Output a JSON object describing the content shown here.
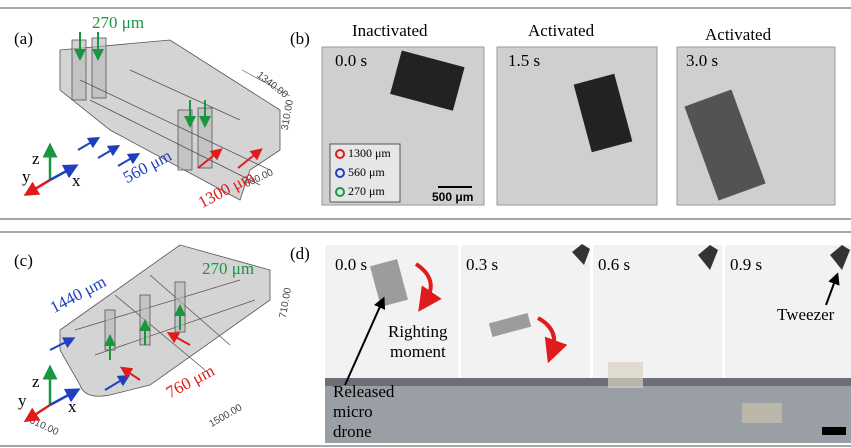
{
  "panel_a": {
    "label": "(a)",
    "dim_270": "270 μm",
    "dim_1340": "1340.00",
    "dim_310": "310.00",
    "dim_600": "600.00",
    "dim_560": "560 μm",
    "dim_1300": "1300 μm",
    "axis_z": "z",
    "axis_y": "y",
    "axis_x": "x"
  },
  "panel_b": {
    "label": "(b)",
    "frames": [
      {
        "state": "Inactivated",
        "time": "0.0 s"
      },
      {
        "state": "Activated",
        "time": "1.5 s"
      },
      {
        "state": "Activated",
        "time": "3.0 s"
      }
    ],
    "legend": [
      "1300 μm",
      "560 μm",
      "270 μm"
    ],
    "scale_bar": "500 μm"
  },
  "panel_c": {
    "label": "(c)",
    "dim_270": "270 μm",
    "dim_1440": "1440 μm",
    "dim_710": "710.00",
    "dim_760": "760 μm",
    "dim_1500": "1500.00",
    "dim_610": "610.00",
    "axis_z": "z",
    "axis_y": "y",
    "axis_x": "x"
  },
  "panel_d": {
    "label": "(d)",
    "times": [
      "0.0 s",
      "0.3 s",
      "0.6 s",
      "0.9 s"
    ],
    "righting": [
      "Righting",
      "moment"
    ],
    "released": [
      "Released",
      "micro",
      "drone"
    ],
    "tweezer": "Tweezer"
  }
}
